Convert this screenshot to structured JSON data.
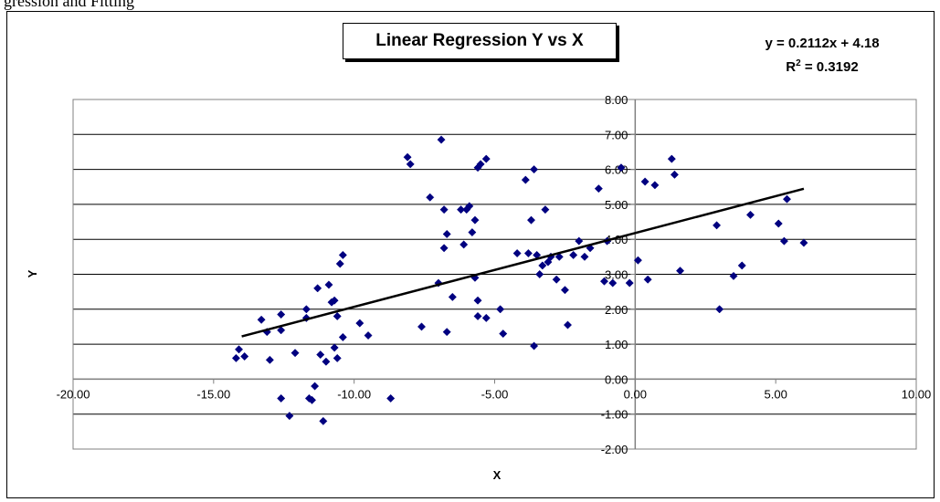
{
  "caption": "gression and Fitting",
  "chart_data": {
    "type": "scatter",
    "title": "Linear Regression Y vs X",
    "xlabel": "X",
    "ylabel": "Y",
    "xlim": [
      -20,
      10
    ],
    "ylim": [
      -2,
      8
    ],
    "x_ticks": [
      "-20.00",
      "-15.00",
      "-10.00",
      "-5.00",
      "0.00",
      "5.00",
      "10.00"
    ],
    "y_ticks": [
      "-2.00",
      "-1.00",
      "0.00",
      "1.00",
      "2.00",
      "3.00",
      "4.00",
      "5.00",
      "6.00",
      "7.00",
      "8.00"
    ],
    "grid": "horizontal",
    "trendline": {
      "slope": 0.2112,
      "intercept": 4.18,
      "x_range": [
        -14.0,
        6.0
      ]
    },
    "equation": "y = 0.2112x + 4.18",
    "r_squared_label": "R",
    "r_squared_exp": "2",
    "r_squared_value": " = 0.3192",
    "marker_color": "#000080",
    "points": [
      [
        -14.2,
        0.6
      ],
      [
        -14.1,
        0.85
      ],
      [
        -13.9,
        0.65
      ],
      [
        -13.3,
        1.7
      ],
      [
        -13.1,
        1.35
      ],
      [
        -13.0,
        0.55
      ],
      [
        -12.6,
        1.4
      ],
      [
        -12.6,
        1.85
      ],
      [
        -12.6,
        -0.55
      ],
      [
        -12.3,
        -1.05
      ],
      [
        -12.1,
        0.75
      ],
      [
        -11.7,
        1.75
      ],
      [
        -11.7,
        2.0
      ],
      [
        -11.6,
        -0.55
      ],
      [
        -11.5,
        -0.6
      ],
      [
        -11.4,
        -0.2
      ],
      [
        -11.3,
        2.6
      ],
      [
        -11.2,
        0.7
      ],
      [
        -11.1,
        -1.2
      ],
      [
        -11.0,
        0.5
      ],
      [
        -10.9,
        2.7
      ],
      [
        -10.8,
        2.2
      ],
      [
        -10.7,
        2.25
      ],
      [
        -10.7,
        0.9
      ],
      [
        -10.6,
        1.8
      ],
      [
        -10.6,
        0.6
      ],
      [
        -10.5,
        3.3
      ],
      [
        -10.4,
        3.55
      ],
      [
        -10.4,
        1.2
      ],
      [
        -9.8,
        1.6
      ],
      [
        -9.5,
        1.25
      ],
      [
        -8.7,
        -0.55
      ],
      [
        -8.1,
        6.35
      ],
      [
        -8.0,
        6.15
      ],
      [
        -7.6,
        1.5
      ],
      [
        -7.3,
        5.2
      ],
      [
        -7.0,
        2.75
      ],
      [
        -6.9,
        6.85
      ],
      [
        -6.8,
        3.75
      ],
      [
        -6.8,
        4.85
      ],
      [
        -6.7,
        4.15
      ],
      [
        -6.7,
        1.35
      ],
      [
        -6.5,
        2.35
      ],
      [
        -6.2,
        4.85
      ],
      [
        -6.1,
        3.85
      ],
      [
        -6.0,
        4.85
      ],
      [
        -5.9,
        4.95
      ],
      [
        -5.8,
        4.2
      ],
      [
        -5.7,
        4.55
      ],
      [
        -5.7,
        2.9
      ],
      [
        -5.6,
        2.25
      ],
      [
        -5.6,
        1.8
      ],
      [
        -5.6,
        6.05
      ],
      [
        -5.5,
        6.15
      ],
      [
        -5.3,
        6.3
      ],
      [
        -5.3,
        1.75
      ],
      [
        -4.8,
        2.0
      ],
      [
        -4.7,
        1.3
      ],
      [
        -4.2,
        3.6
      ],
      [
        -3.9,
        5.7
      ],
      [
        -3.8,
        3.6
      ],
      [
        -3.7,
        4.55
      ],
      [
        -3.6,
        6.0
      ],
      [
        -3.6,
        0.95
      ],
      [
        -3.5,
        3.55
      ],
      [
        -3.4,
        3.0
      ],
      [
        -3.3,
        3.25
      ],
      [
        -3.2,
        4.85
      ],
      [
        -3.1,
        3.35
      ],
      [
        -3.0,
        3.5
      ],
      [
        -2.8,
        2.85
      ],
      [
        -2.7,
        3.5
      ],
      [
        -2.5,
        2.55
      ],
      [
        -2.4,
        1.55
      ],
      [
        -2.2,
        3.55
      ],
      [
        -2.0,
        3.95
      ],
      [
        -1.8,
        3.5
      ],
      [
        -1.6,
        3.75
      ],
      [
        -1.3,
        5.45
      ],
      [
        -1.1,
        2.8
      ],
      [
        -1.0,
        3.95
      ],
      [
        -0.8,
        2.75
      ],
      [
        -0.5,
        6.05
      ],
      [
        -0.2,
        2.75
      ],
      [
        0.1,
        3.4
      ],
      [
        0.35,
        5.65
      ],
      [
        0.45,
        2.85
      ],
      [
        0.7,
        5.55
      ],
      [
        1.3,
        6.3
      ],
      [
        1.4,
        5.85
      ],
      [
        1.6,
        3.1
      ],
      [
        2.9,
        4.4
      ],
      [
        3.0,
        2.0
      ],
      [
        3.5,
        2.95
      ],
      [
        3.8,
        3.25
      ],
      [
        4.1,
        4.7
      ],
      [
        5.1,
        4.45
      ],
      [
        5.3,
        3.95
      ],
      [
        5.4,
        5.15
      ],
      [
        6.0,
        3.9
      ]
    ]
  }
}
